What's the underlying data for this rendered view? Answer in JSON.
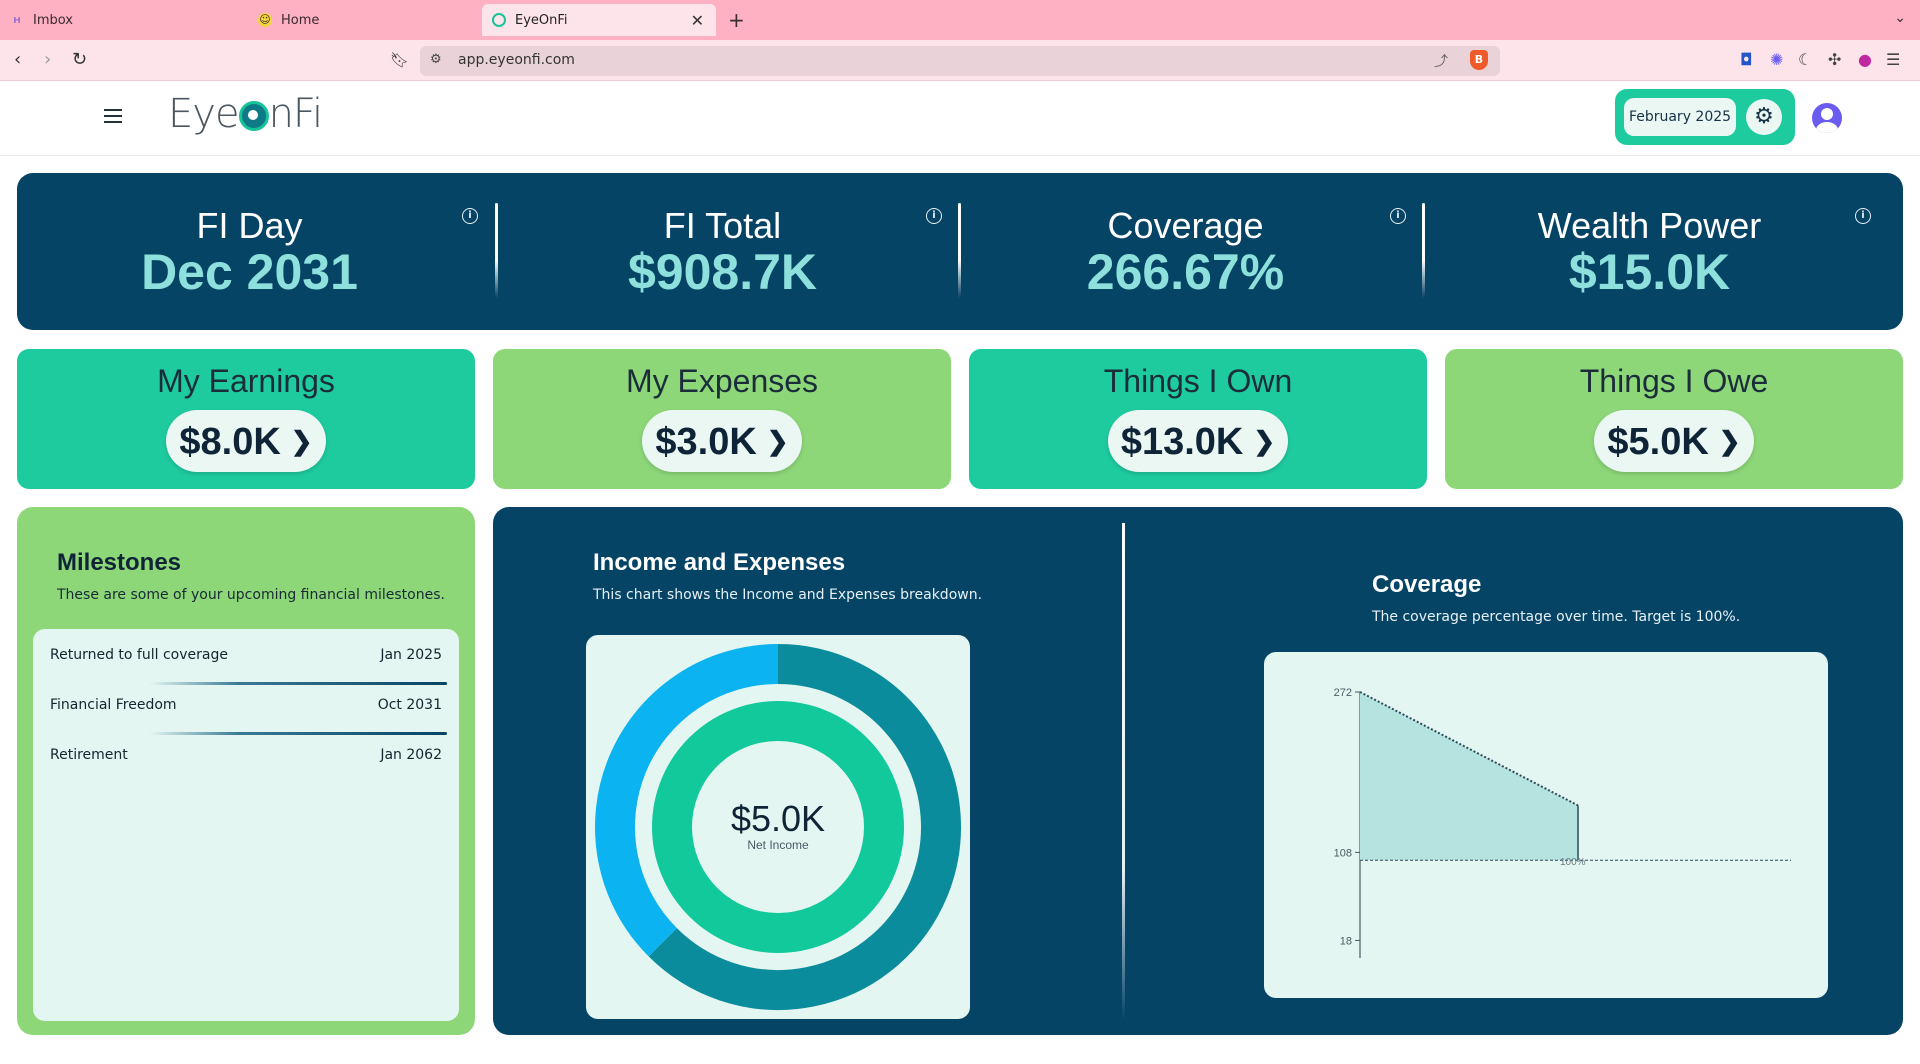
{
  "browser": {
    "tabs": [
      {
        "label": "Imbox",
        "icon": "hey-icon"
      },
      {
        "label": "Home",
        "icon": "smiley-icon"
      },
      {
        "label": "EyeOnFi",
        "icon": "eyeonfi-icon"
      }
    ],
    "url": "app.eyeonfi.com"
  },
  "header": {
    "logo_text_left": "Eye",
    "logo_text_right": "nFi",
    "date_label": "February 2025"
  },
  "kpis": [
    {
      "title": "FI Day",
      "value": "Dec 2031"
    },
    {
      "title": "FI Total",
      "value": "$908.7K"
    },
    {
      "title": "Coverage",
      "value": "266.67%"
    },
    {
      "title": "Wealth Power",
      "value": "$15.0K"
    }
  ],
  "cards": [
    {
      "title": "My Earnings",
      "value": "$8.0K",
      "color": "#1ecb9f"
    },
    {
      "title": "My Expenses",
      "value": "$3.0K",
      "color": "#8dd779"
    },
    {
      "title": "Things I Own",
      "value": "$13.0K",
      "color": "#1ecb9f"
    },
    {
      "title": "Things I Owe",
      "value": "$5.0K",
      "color": "#8dd779"
    }
  ],
  "milestones": {
    "title": "Milestones",
    "subtitle": "These are some of your upcoming financial milestones.",
    "items": [
      {
        "name": "Returned to full coverage",
        "date": "Jan 2025"
      },
      {
        "name": "Financial Freedom",
        "date": "Oct 2031"
      },
      {
        "name": "Retirement",
        "date": "Jan 2062"
      }
    ]
  },
  "income_chart": {
    "title": "Income and Expenses",
    "subtitle": "This chart shows the Income and Expenses breakdown.",
    "center_value": "$5.0K",
    "center_label": "Net Income"
  },
  "coverage_chart": {
    "title": "Coverage",
    "subtitle": "The coverage percentage over time. Target is 100%.",
    "target_label": "100%"
  },
  "colors": {
    "navy": "#064466",
    "teal": "#1ecb9f",
    "green": "#8dd779",
    "mint_bg": "#e4f6f1",
    "kpi_value": "#8ee0dc",
    "outer_ring": "#0b8c9c",
    "outer_ring_accent": "#0bb3f0",
    "inner_ring": "#12c99c"
  },
  "chart_data": [
    {
      "type": "pie",
      "title": "Income and Expenses",
      "rings": [
        {
          "name": "outer",
          "values": [
            5.0,
            3.0
          ]
        },
        {
          "name": "inner",
          "values": [
            8.0
          ]
        }
      ],
      "colors_outer": [
        "#0b8c9c",
        "#0bb3f0"
      ],
      "colors_inner": [
        "#12c99c"
      ]
    },
    {
      "type": "area",
      "title": "Coverage",
      "ticks_y": [
        272,
        108,
        18
      ],
      "ylim": [
        0,
        272
      ],
      "series": [
        {
          "values": [
            272,
            268,
            264,
            260,
            256,
            252,
            248,
            244,
            240,
            236,
            232,
            228,
            224,
            220,
            216,
            212,
            208,
            204,
            200,
            196,
            192,
            188,
            184,
            180,
            176,
            172,
            168,
            164,
            160,
            156
          ]
        }
      ],
      "target": 100
    }
  ]
}
